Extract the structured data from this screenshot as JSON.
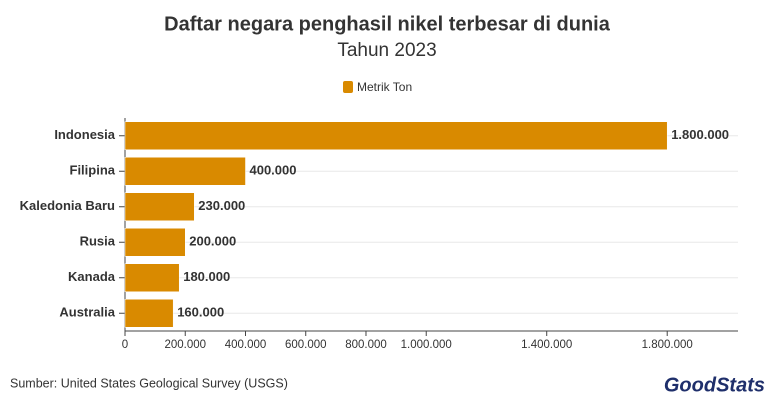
{
  "chart_data": {
    "type": "hbar",
    "title": "Daftar negara penghasil nikel terbesar di dunia",
    "subtitle": "Tahun 2023",
    "categories": [
      "Indonesia",
      "Filipina",
      "Kaledonia Baru",
      "Rusia",
      "Kanada",
      "Australia"
    ],
    "series": [
      {
        "name": "Metrik Ton",
        "color": "#d98a00",
        "values": [
          1800000,
          400000,
          230000,
          200000,
          180000,
          160000
        ],
        "value_labels": [
          "1.800.000",
          "400.000",
          "230.000",
          "200.000",
          "180.000",
          "160.000"
        ]
      }
    ],
    "xlim": [
      0,
      2035000
    ],
    "xticks": [
      0,
      {
        "value": 200000,
        "label": "200.000"
      },
      {
        "value": 400000,
        "label": "400.000"
      },
      {
        "value": 600000,
        "label": "600.000"
      },
      {
        "value": 800000,
        "label": "800.000"
      },
      {
        "value": 1000000,
        "label": "1.000.000"
      },
      {
        "value": 1400000,
        "label": "1.400.000"
      },
      {
        "value": 1800000,
        "label": "1.800.000"
      }
    ],
    "grid": true,
    "legend": "top",
    "source": "Sumber: United States Geological Survey (USGS)",
    "brand": "GoodStats"
  }
}
